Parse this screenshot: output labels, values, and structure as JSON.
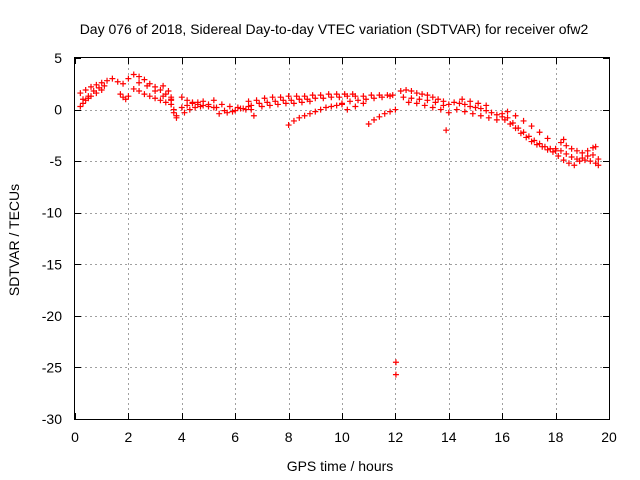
{
  "chart_data": {
    "type": "scatter",
    "title": "Day 076 of 2018, Sidereal Day-to-day VTEC variation (SDTVAR) for receiver ofw2",
    "xlabel": "GPS time / hours",
    "ylabel": "SDTVAR / TECUs",
    "xlim": [
      0,
      20
    ],
    "ylim": [
      -30,
      5
    ],
    "xticks": [
      0,
      2,
      4,
      6,
      8,
      10,
      12,
      14,
      16,
      18,
      20
    ],
    "yticks": [
      5,
      0,
      -5,
      -10,
      -15,
      -20,
      -25,
      -30
    ],
    "xtick_labels": [
      "0",
      "2",
      "4",
      "6",
      "8",
      "10",
      "12",
      "14",
      "16",
      "18",
      "20"
    ],
    "ytick_labels": [
      "5",
      "0",
      "-5",
      "-10",
      "-15",
      "-20",
      "-25",
      "-30"
    ],
    "grid": true,
    "marker": "+",
    "series": [
      {
        "name": "SDTVAR",
        "color": "#ff0000",
        "tracks": [
          {
            "x": [
              0.2,
              0.4,
              0.6,
              0.8,
              1.0,
              1.2,
              1.4,
              1.6,
              1.8
            ],
            "y": [
              1.6,
              1.9,
              2.2,
              2.4,
              2.6,
              2.8,
              3.0,
              2.7,
              2.5
            ]
          },
          {
            "x": [
              0.2,
              0.3,
              0.4,
              0.5,
              0.6,
              0.8,
              1.0
            ],
            "y": [
              0.3,
              0.6,
              0.9,
              1.1,
              1.3,
              1.6,
              1.9
            ]
          },
          {
            "x": [
              0.3,
              0.5,
              0.7,
              0.9,
              1.1
            ],
            "y": [
              1.0,
              1.3,
              1.8,
              2.1,
              2.3
            ]
          },
          {
            "x": [
              1.7,
              1.8,
              1.9,
              2.0
            ],
            "y": [
              1.5,
              1.2,
              1.0,
              1.3
            ]
          },
          {
            "x": [
              2.0,
              2.2,
              2.4,
              2.6,
              2.8,
              3.0,
              3.2,
              3.4,
              3.6
            ],
            "y": [
              3.0,
              3.4,
              3.2,
              2.9,
              2.5,
              2.2,
              1.9,
              1.5,
              1.2
            ]
          },
          {
            "x": [
              2.2,
              2.4,
              2.6,
              2.8,
              3.0,
              3.2,
              3.4,
              3.6
            ],
            "y": [
              2.0,
              1.8,
              1.5,
              1.3,
              1.1,
              0.9,
              0.7,
              0.5
            ]
          },
          {
            "x": [
              2.4,
              2.7,
              3.0,
              3.3,
              3.6
            ],
            "y": [
              2.6,
              2.3,
              1.8,
              1.3,
              0.9
            ]
          },
          {
            "x": [
              3.3,
              3.5,
              3.6,
              3.7,
              3.8
            ],
            "y": [
              2.3,
              1.8,
              1.0,
              0.0,
              -0.8
            ]
          },
          {
            "x": [
              3.6,
              3.7,
              3.8
            ],
            "y": [
              0.5,
              -0.3,
              -0.6
            ]
          },
          {
            "x": [
              4.0,
              4.2,
              4.4,
              4.6,
              4.8,
              5.0,
              5.2
            ],
            "y": [
              1.2,
              0.9,
              0.7,
              0.5,
              0.4,
              0.3,
              0.2
            ]
          },
          {
            "x": [
              4.0,
              4.2,
              4.4,
              4.6,
              4.8
            ],
            "y": [
              0.2,
              0.4,
              0.6,
              0.7,
              0.8
            ]
          },
          {
            "x": [
              4.1,
              4.3,
              4.5,
              4.7
            ],
            "y": [
              -0.3,
              0.0,
              0.2,
              0.3
            ]
          },
          {
            "x": [
              5.0,
              5.3,
              5.6,
              5.9,
              6.2,
              6.5
            ],
            "y": [
              0.5,
              0.2,
              -0.1,
              -0.2,
              0.1,
              0.3
            ]
          },
          {
            "x": [
              5.2,
              5.5,
              5.8,
              6.1,
              6.4
            ],
            "y": [
              0.9,
              0.5,
              0.3,
              0.2,
              0.0
            ]
          },
          {
            "x": [
              5.4,
              5.7,
              6.0,
              6.3
            ],
            "y": [
              -0.4,
              -0.3,
              -0.1,
              0.1
            ]
          },
          {
            "x": [
              6.5,
              6.6,
              6.7
            ],
            "y": [
              0.8,
              0.0,
              -0.6
            ]
          },
          {
            "x": [
              6.6,
              6.9,
              7.2,
              7.5,
              7.8,
              8.1,
              8.4,
              8.7,
              9.0,
              9.3,
              9.6,
              9.9,
              10.2,
              10.5,
              10.8,
              11.1,
              11.4,
              11.7,
              11.9
            ],
            "y": [
              0.4,
              0.6,
              0.7,
              0.8,
              0.9,
              0.9,
              1.0,
              1.0,
              1.1,
              1.1,
              1.2,
              1.2,
              1.3,
              1.3,
              1.3,
              1.4,
              1.4,
              1.4,
              1.4
            ]
          },
          {
            "x": [
              6.8,
              7.1,
              7.4,
              7.7,
              8.0,
              8.3,
              8.6,
              8.9,
              9.2,
              9.5,
              9.8,
              10.1,
              10.4
            ],
            "y": [
              0.9,
              1.1,
              1.2,
              1.2,
              1.3,
              1.3,
              1.3,
              1.4,
              1.4,
              1.5,
              1.5,
              1.5,
              1.5
            ]
          },
          {
            "x": [
              7.0,
              7.3,
              7.6,
              7.9,
              8.2,
              8.5,
              8.8
            ],
            "y": [
              0.3,
              0.4,
              0.5,
              0.6,
              0.6,
              0.7,
              0.8
            ]
          },
          {
            "x": [
              8.0,
              8.2,
              8.4,
              8.6,
              8.8,
              9.0,
              9.2,
              9.4,
              9.6,
              9.8,
              10.0
            ],
            "y": [
              -1.5,
              -1.1,
              -0.8,
              -0.6,
              -0.4,
              -0.2,
              0.0,
              0.2,
              0.3,
              0.4,
              0.5
            ]
          },
          {
            "x": [
              10.0,
              10.3,
              10.6,
              10.9,
              11.2,
              11.5,
              11.8
            ],
            "y": [
              0.6,
              0.8,
              0.9,
              1.0,
              1.1,
              1.2,
              1.3
            ]
          },
          {
            "x": [
              10.2,
              10.5,
              10.8
            ],
            "y": [
              0.0,
              0.3,
              0.6
            ]
          },
          {
            "x": [
              11.0,
              11.2,
              11.4,
              11.6,
              11.8,
              12.0
            ],
            "y": [
              -1.4,
              -1.0,
              -0.7,
              -0.4,
              -0.2,
              0.0
            ]
          },
          {
            "x": [
              12.2,
              12.4,
              12.6,
              12.8,
              13.0,
              13.2,
              13.4,
              13.6,
              13.8,
              14.0
            ],
            "y": [
              1.8,
              1.9,
              1.8,
              1.6,
              1.5,
              1.4,
              1.2,
              1.0,
              0.8,
              0.5
            ]
          },
          {
            "x": [
              12.3,
              12.6,
              12.9,
              13.2,
              13.5,
              13.8
            ],
            "y": [
              1.2,
              1.1,
              1.0,
              0.9,
              0.7,
              0.4
            ]
          },
          {
            "x": [
              12.5,
              12.8,
              13.1,
              13.4,
              13.7,
              14.0
            ],
            "y": [
              0.7,
              0.6,
              0.4,
              0.2,
              0.0,
              -0.3
            ]
          },
          {
            "x": [
              13.9
            ],
            "y": [
              -2.0
            ]
          },
          {
            "x": [
              12.02,
              12.02
            ],
            "y": [
              -24.5,
              -25.7
            ]
          },
          {
            "x": [
              14.2,
              14.4,
              14.6,
              14.8,
              15.0,
              15.2,
              15.4,
              15.6,
              15.8,
              16.0
            ],
            "y": [
              0.7,
              0.6,
              0.5,
              0.3,
              0.2,
              0.1,
              -0.1,
              -0.3,
              -0.5,
              -0.7
            ]
          },
          {
            "x": [
              14.3,
              14.6,
              14.9,
              15.2,
              15.5,
              15.8
            ],
            "y": [
              0.0,
              -0.2,
              -0.4,
              -0.6,
              -0.8,
              -1.0
            ]
          },
          {
            "x": [
              14.5,
              14.8,
              15.1,
              15.4
            ],
            "y": [
              1.0,
              0.8,
              0.6,
              0.4
            ]
          },
          {
            "x": [
              16.0,
              16.2,
              16.4,
              16.6,
              16.8,
              17.0,
              17.2,
              17.4,
              17.6,
              17.8,
              18.0
            ],
            "y": [
              -0.4,
              -0.8,
              -1.3,
              -1.8,
              -2.2,
              -2.6,
              -3.0,
              -3.3,
              -3.6,
              -3.8,
              -4.0
            ]
          },
          {
            "x": [
              16.1,
              16.3,
              16.5,
              16.7,
              16.9,
              17.1,
              17.3,
              17.5,
              17.7,
              17.9
            ],
            "y": [
              -1.0,
              -1.4,
              -1.8,
              -2.3,
              -2.7,
              -3.1,
              -3.4,
              -3.6,
              -3.9,
              -4.1
            ]
          },
          {
            "x": [
              16.2,
              16.5,
              16.8,
              17.1,
              17.4,
              17.7
            ],
            "y": [
              -0.2,
              -0.6,
              -1.1,
              -1.6,
              -2.2,
              -2.8
            ]
          },
          {
            "x": [
              18.0,
              18.2,
              18.4,
              18.6,
              18.8,
              19.0,
              19.2,
              19.4,
              19.6
            ],
            "y": [
              -3.8,
              -4.0,
              -4.3,
              -4.6,
              -4.8,
              -4.7,
              -4.5,
              -4.4,
              -4.8
            ]
          },
          {
            "x": [
              18.1,
              18.3,
              18.5,
              18.7,
              18.9,
              19.1,
              19.3,
              19.5
            ],
            "y": [
              -4.5,
              -4.9,
              -5.2,
              -5.4,
              -5.0,
              -4.9,
              -5.0,
              -5.2
            ]
          },
          {
            "x": [
              18.2,
              18.4,
              18.6,
              18.8,
              19.0,
              19.2,
              19.4
            ],
            "y": [
              -3.2,
              -3.5,
              -3.8,
              -4.0,
              -4.2,
              -4.0,
              -3.7
            ]
          },
          {
            "x": [
              18.3,
              19.5,
              19.6
            ],
            "y": [
              -2.9,
              -3.6,
              -5.4
            ]
          }
        ]
      }
    ]
  }
}
